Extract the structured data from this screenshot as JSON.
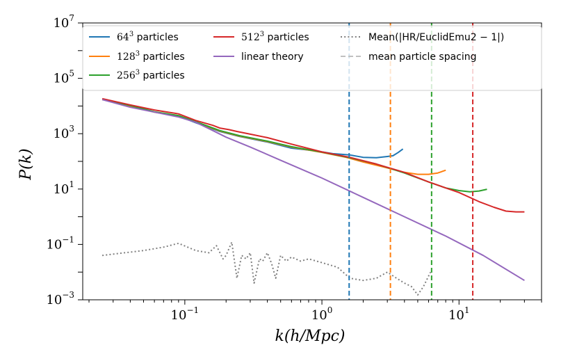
{
  "chart_data": {
    "type": "line",
    "xscale": "log",
    "yscale": "log",
    "xlabel": "k(h/Mpc)",
    "ylabel": "P(k)",
    "xlim": [
      0.018,
      40
    ],
    "ylim": [
      0.001,
      10000000
    ],
    "x_ticks": [
      {
        "value": 0.1,
        "base": "10",
        "exp": "−1"
      },
      {
        "value": 1,
        "base": "10",
        "exp": "0"
      },
      {
        "value": 10,
        "base": "10",
        "exp": "1"
      }
    ],
    "y_ticks": [
      {
        "value": 0.001,
        "base": "10",
        "exp": "−3"
      },
      {
        "value": 0.1,
        "base": "10",
        "exp": "−1"
      },
      {
        "value": 10,
        "base": "10",
        "exp": "1"
      },
      {
        "value": 1000,
        "base": "10",
        "exp": "3"
      },
      {
        "value": 100000,
        "base": "10",
        "exp": "5"
      },
      {
        "value": 10000000,
        "base": "10",
        "exp": "7"
      }
    ],
    "legend_position": "top",
    "series": [
      {
        "key": "p64",
        "name_num": "64",
        "name_sup": "3",
        "name_rest": " particles",
        "color": "#1f77b4",
        "style": "solid",
        "points": [
          [
            0.025,
            17000
          ],
          [
            0.04,
            10000
          ],
          [
            0.06,
            6000
          ],
          [
            0.09,
            4300
          ],
          [
            0.12,
            2500
          ],
          [
            0.18,
            1200
          ],
          [
            0.25,
            800
          ],
          [
            0.4,
            500
          ],
          [
            0.6,
            300
          ],
          [
            0.9,
            240
          ],
          [
            1.2,
            190
          ],
          [
            1.6,
            170
          ],
          [
            2.0,
            140
          ],
          [
            2.5,
            135
          ],
          [
            3.0,
            150
          ],
          [
            3.3,
            160
          ],
          [
            3.6,
            210
          ],
          [
            3.9,
            280
          ]
        ]
      },
      {
        "key": "p128",
        "name_num": "128",
        "name_sup": "3",
        "name_rest": " particles",
        "color": "#ff7f0e",
        "style": "solid",
        "points": [
          [
            0.025,
            17000
          ],
          [
            0.04,
            10000
          ],
          [
            0.06,
            6000
          ],
          [
            0.09,
            4400
          ],
          [
            0.12,
            2600
          ],
          [
            0.18,
            1250
          ],
          [
            0.25,
            820
          ],
          [
            0.4,
            520
          ],
          [
            0.6,
            330
          ],
          [
            1.0,
            210
          ],
          [
            1.5,
            140
          ],
          [
            2.0,
            95
          ],
          [
            3.0,
            58
          ],
          [
            4.0,
            40
          ],
          [
            5.0,
            34
          ],
          [
            6.0,
            34
          ],
          [
            7.0,
            38
          ],
          [
            8.0,
            48
          ]
        ]
      },
      {
        "key": "p256",
        "name_num": "256",
        "name_sup": "3",
        "name_rest": " particles",
        "color": "#2ca02c",
        "style": "solid",
        "points": [
          [
            0.025,
            17500
          ],
          [
            0.04,
            10500
          ],
          [
            0.06,
            6200
          ],
          [
            0.09,
            4500
          ],
          [
            0.12,
            2700
          ],
          [
            0.18,
            1300
          ],
          [
            0.25,
            850
          ],
          [
            0.4,
            540
          ],
          [
            0.6,
            340
          ],
          [
            1.0,
            215
          ],
          [
            1.6,
            135
          ],
          [
            2.5,
            80
          ],
          [
            4.0,
            38
          ],
          [
            6.0,
            18
          ],
          [
            8.0,
            11
          ],
          [
            10,
            8.8
          ],
          [
            12,
            8.0
          ],
          [
            14,
            8.5
          ],
          [
            16,
            9.8
          ]
        ]
      },
      {
        "key": "p512",
        "name_num": "512",
        "name_sup": "3",
        "name_rest": " particles",
        "color": "#d62728",
        "style": "solid",
        "points": [
          [
            0.025,
            18500
          ],
          [
            0.04,
            11000
          ],
          [
            0.06,
            7200
          ],
          [
            0.09,
            5200
          ],
          [
            0.12,
            3000
          ],
          [
            0.16,
            2000
          ],
          [
            0.18,
            1600
          ],
          [
            0.21,
            1400
          ],
          [
            0.24,
            1200
          ],
          [
            0.3,
            960
          ],
          [
            0.4,
            720
          ],
          [
            0.6,
            420
          ],
          [
            1.0,
            220
          ],
          [
            1.6,
            140
          ],
          [
            2.5,
            80
          ],
          [
            4.0,
            40
          ],
          [
            6.0,
            18
          ],
          [
            10,
            7.5
          ],
          [
            14,
            3.5
          ],
          [
            18,
            2.2
          ],
          [
            22,
            1.6
          ],
          [
            26,
            1.5
          ],
          [
            30,
            1.5
          ]
        ]
      },
      {
        "key": "lin",
        "name_num": "",
        "name_sup": "",
        "name_rest": "linear theory",
        "color": "#9467bd",
        "style": "solid",
        "points": [
          [
            0.025,
            17000
          ],
          [
            0.04,
            9000
          ],
          [
            0.06,
            6000
          ],
          [
            0.09,
            4000
          ],
          [
            0.12,
            2600
          ],
          [
            0.16,
            1300
          ],
          [
            0.2,
            750
          ],
          [
            0.3,
            330
          ],
          [
            0.5,
            110
          ],
          [
            1.0,
            25
          ],
          [
            2.0,
            5
          ],
          [
            4.0,
            1.0
          ],
          [
            8.0,
            0.2
          ],
          [
            15,
            0.04
          ],
          [
            30,
            0.005
          ]
        ]
      },
      {
        "key": "mean",
        "name_num": "",
        "name_sup": "",
        "name_rest": "Mean(|HR/EuclidEmu2 − 1|)",
        "color": "#7f7f7f",
        "style": "dotted",
        "points": [
          [
            0.025,
            0.04
          ],
          [
            0.05,
            0.06
          ],
          [
            0.07,
            0.08
          ],
          [
            0.09,
            0.11
          ],
          [
            0.12,
            0.06
          ],
          [
            0.15,
            0.05
          ],
          [
            0.17,
            0.09
          ],
          [
            0.19,
            0.03
          ],
          [
            0.2,
            0.04
          ],
          [
            0.22,
            0.12
          ],
          [
            0.24,
            0.006
          ],
          [
            0.26,
            0.04
          ],
          [
            0.28,
            0.03
          ],
          [
            0.3,
            0.05
          ],
          [
            0.32,
            0.004
          ],
          [
            0.35,
            0.03
          ],
          [
            0.37,
            0.025
          ],
          [
            0.4,
            0.05
          ],
          [
            0.43,
            0.02
          ],
          [
            0.46,
            0.006
          ],
          [
            0.5,
            0.04
          ],
          [
            0.55,
            0.025
          ],
          [
            0.6,
            0.035
          ],
          [
            0.7,
            0.025
          ],
          [
            0.8,
            0.03
          ],
          [
            1.0,
            0.022
          ],
          [
            1.3,
            0.015
          ],
          [
            1.6,
            0.006
          ],
          [
            2.0,
            0.005
          ],
          [
            2.5,
            0.006
          ],
          [
            3.0,
            0.01
          ],
          [
            3.5,
            0.006
          ],
          [
            4.0,
            0.004
          ],
          [
            4.5,
            0.003
          ],
          [
            5.0,
            0.0015
          ],
          [
            5.5,
            0.003
          ],
          [
            6.2,
            0.01
          ]
        ]
      }
    ],
    "vertical_lines": [
      {
        "key": "v64",
        "x": 1.58,
        "color": "#1f77b4"
      },
      {
        "key": "v128",
        "x": 3.16,
        "color": "#ff7f0e"
      },
      {
        "key": "v256",
        "x": 6.31,
        "color": "#2ca02c"
      },
      {
        "key": "v512",
        "x": 12.6,
        "color": "#d62728"
      }
    ],
    "legend_spacing_label": "mean particle spacing",
    "legend_spacing_color": "#c0c0c0"
  }
}
